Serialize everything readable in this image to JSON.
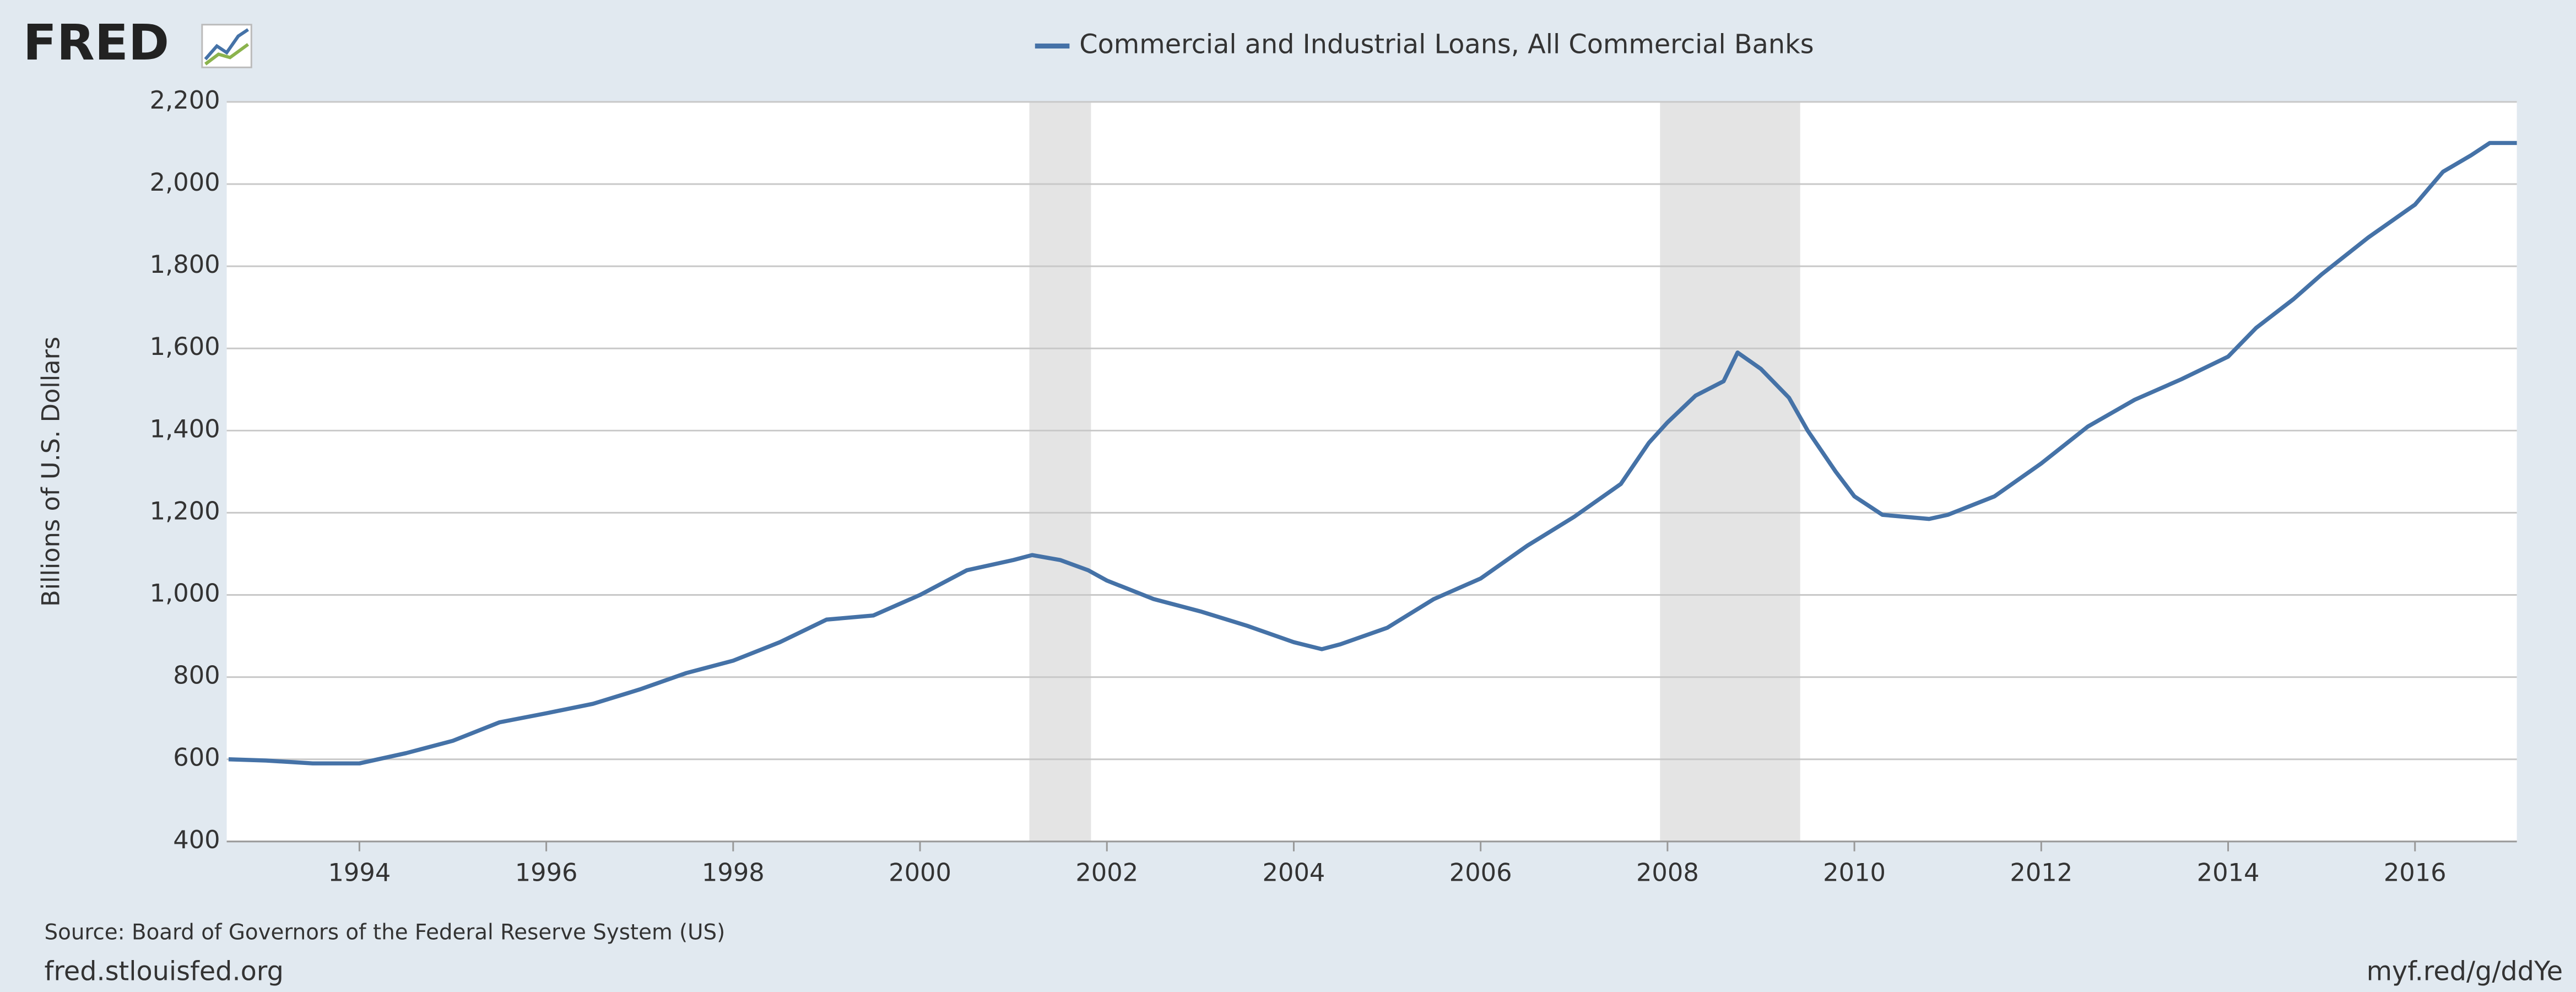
{
  "logo": "FRED",
  "chart_data": {
    "type": "line",
    "ylabel": "Billions of U.S. Dollars",
    "series": [
      {
        "name": "Commercial and Industrial Loans, All Commercial Banks",
        "color": "#4572a7",
        "x": [
          1992.6,
          1993.0,
          1993.5,
          1994.0,
          1994.5,
          1995.0,
          1995.5,
          1996.0,
          1996.5,
          1997.0,
          1997.5,
          1998.0,
          1998.5,
          1999.0,
          1999.5,
          2000.0,
          2000.5,
          2001.0,
          2001.2,
          2001.5,
          2001.8,
          2002.0,
          2002.5,
          2003.0,
          2003.5,
          2004.0,
          2004.3,
          2004.5,
          2005.0,
          2005.5,
          2006.0,
          2006.5,
          2007.0,
          2007.5,
          2007.8,
          2008.0,
          2008.3,
          2008.6,
          2008.75,
          2009.0,
          2009.3,
          2009.5,
          2009.8,
          2010.0,
          2010.3,
          2010.8,
          2011.0,
          2011.5,
          2012.0,
          2012.5,
          2013.0,
          2013.5,
          2014.0,
          2014.3,
          2014.7,
          2015.0,
          2015.5,
          2016.0,
          2016.3,
          2016.6,
          2016.8,
          2017.09
        ],
        "values": [
          600,
          597,
          590,
          590,
          615,
          645,
          690,
          712,
          735,
          770,
          810,
          840,
          885,
          940,
          950,
          1000,
          1060,
          1085,
          1097,
          1085,
          1060,
          1035,
          990,
          960,
          925,
          885,
          868,
          880,
          920,
          990,
          1040,
          1120,
          1190,
          1270,
          1370,
          1420,
          1485,
          1520,
          1590,
          1550,
          1480,
          1400,
          1300,
          1240,
          1195,
          1185,
          1195,
          1240,
          1320,
          1410,
          1475,
          1525,
          1580,
          1650,
          1720,
          1780,
          1870,
          1950,
          2030,
          2070,
          2100,
          2100
        ]
      }
    ],
    "recessions": [
      [
        2001.17,
        2001.83
      ],
      [
        2007.92,
        2009.42
      ]
    ],
    "xlim": [
      1992.58,
      2017.09
    ],
    "xticks": [
      1994,
      1996,
      1998,
      2000,
      2002,
      2004,
      2006,
      2008,
      2010,
      2012,
      2014,
      2016
    ],
    "ylim": [
      400,
      2200
    ],
    "yticks": [
      {
        "value": 400,
        "label": "400"
      },
      {
        "value": 600,
        "label": "600"
      },
      {
        "value": 800,
        "label": "800"
      },
      {
        "value": 1000,
        "label": "1,000"
      },
      {
        "value": 1200,
        "label": "1,200"
      },
      {
        "value": 1400,
        "label": "1,400"
      },
      {
        "value": 1600,
        "label": "1,600"
      },
      {
        "value": 1800,
        "label": "1,800"
      },
      {
        "value": 2000,
        "label": "2,000"
      },
      {
        "value": 2200,
        "label": "2,200"
      }
    ],
    "grid": true,
    "source": "Source: Board of Governors of the Federal Reserve System (US)",
    "site": "fred.stlouisfed.org",
    "link": "myf.red/g/ddYe"
  }
}
